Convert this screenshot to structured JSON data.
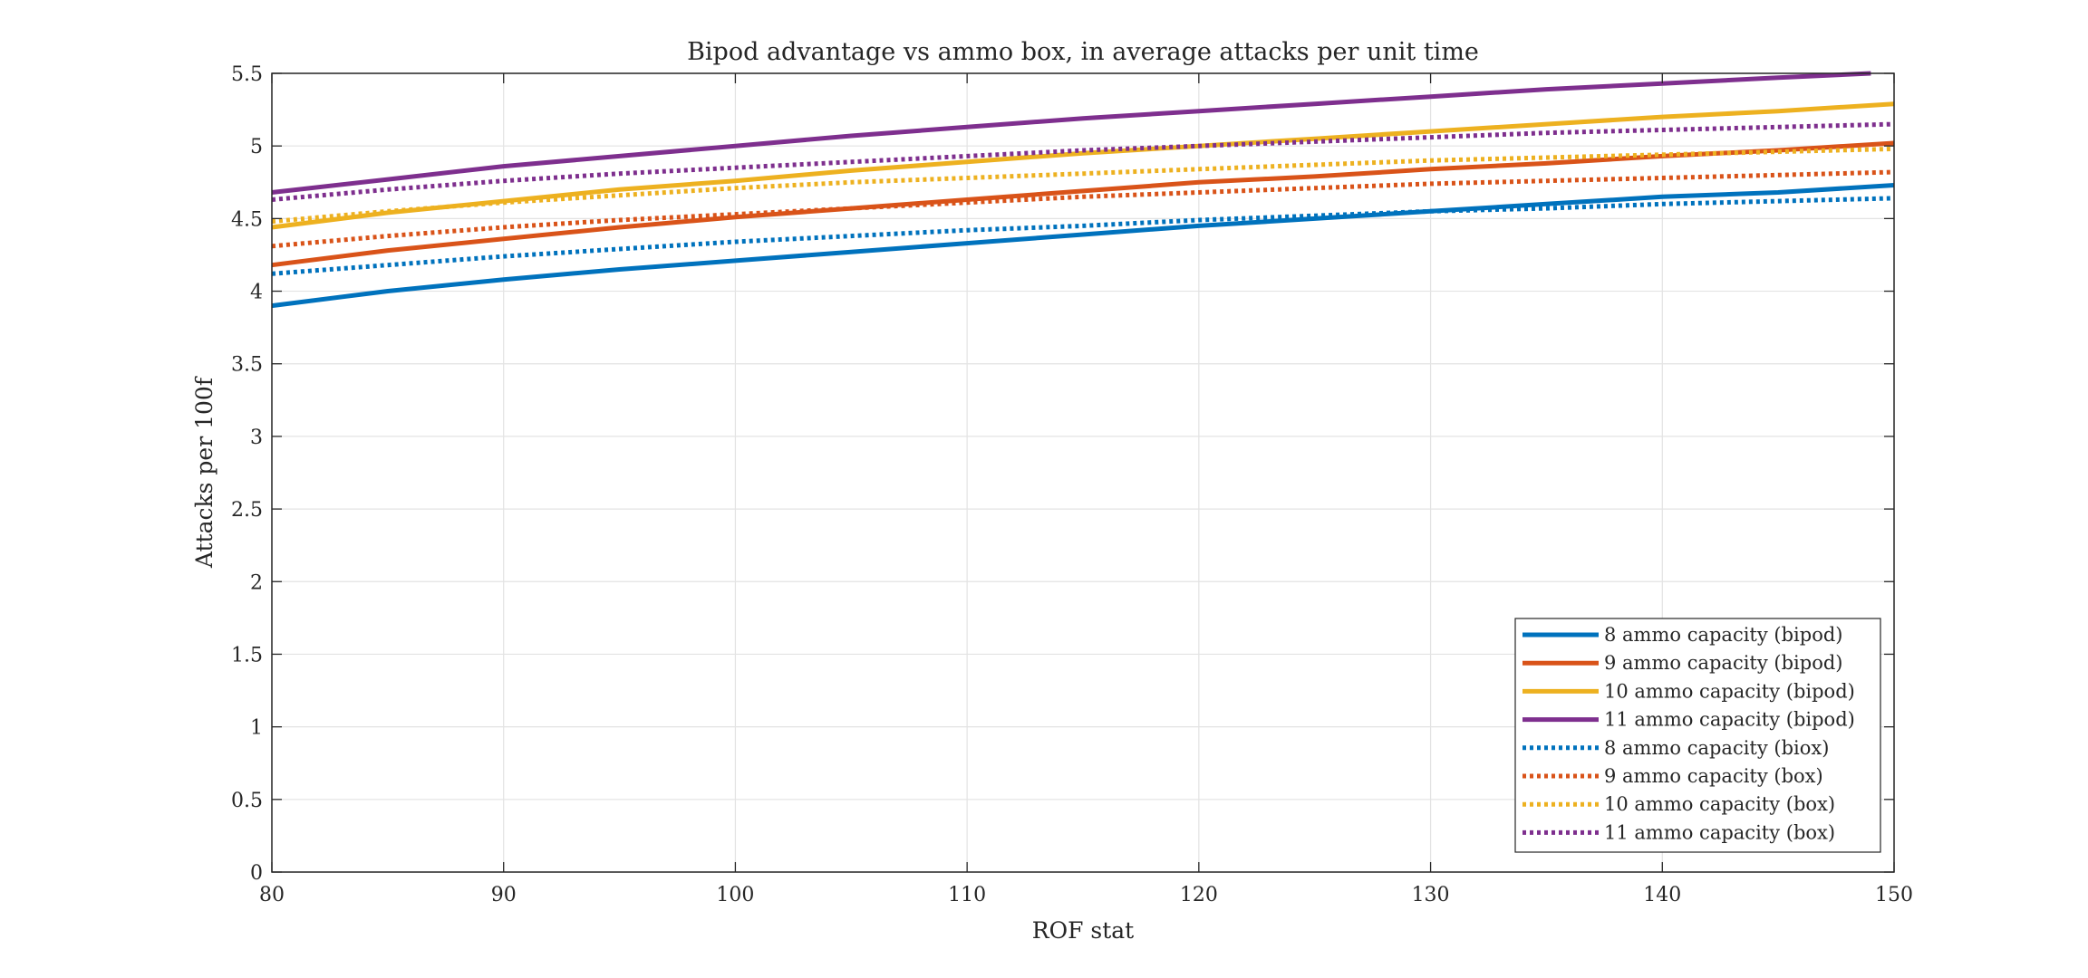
{
  "chart_data": {
    "type": "line",
    "title": "Bipod advantage vs ammo box, in average attacks per unit time",
    "xlabel": "ROF stat",
    "ylabel": "Attacks per 100f",
    "xlim": [
      80,
      150
    ],
    "ylim": [
      0,
      5.5
    ],
    "xticks": [
      80,
      90,
      100,
      110,
      120,
      130,
      140,
      150
    ],
    "xtick_labels": [
      "80",
      "90",
      "100",
      "110",
      "120",
      "130",
      "140",
      "150"
    ],
    "yticks": [
      0,
      0.5,
      1,
      1.5,
      2,
      2.5,
      3,
      3.5,
      4,
      4.5,
      5,
      5.5
    ],
    "ytick_labels": [
      "0",
      "0.5",
      "1",
      "1.5",
      "2",
      "2.5",
      "3",
      "3.5",
      "4",
      "4.5",
      "5",
      "5.5"
    ],
    "grid": true,
    "legend_position": "bottom-right",
    "series": [
      {
        "name": "8 ammo capacity (bipod)",
        "color": "#0072BD",
        "style": "solid",
        "x": [
          80,
          85,
          90,
          95,
          100,
          105,
          110,
          115,
          120,
          125,
          130,
          135,
          140,
          145,
          150
        ],
        "y": [
          3.9,
          4.0,
          4.08,
          4.15,
          4.21,
          4.27,
          4.33,
          4.39,
          4.45,
          4.5,
          4.55,
          4.6,
          4.65,
          4.68,
          4.73
        ]
      },
      {
        "name": "9 ammo capacity (bipod)",
        "color": "#D95319",
        "style": "solid",
        "x": [
          80,
          85,
          90,
          95,
          100,
          105,
          110,
          115,
          120,
          125,
          130,
          135,
          140,
          145,
          150
        ],
        "y": [
          4.18,
          4.28,
          4.36,
          4.44,
          4.51,
          4.57,
          4.63,
          4.69,
          4.75,
          4.79,
          4.84,
          4.88,
          4.93,
          4.97,
          5.02
        ]
      },
      {
        "name": "10 ammo capacity (bipod)",
        "color": "#EDB120",
        "style": "solid",
        "x": [
          80,
          85,
          90,
          95,
          100,
          105,
          110,
          115,
          120,
          125,
          130,
          135,
          140,
          145,
          150
        ],
        "y": [
          4.44,
          4.54,
          4.62,
          4.7,
          4.76,
          4.83,
          4.89,
          4.95,
          5.0,
          5.05,
          5.1,
          5.15,
          5.2,
          5.24,
          5.29
        ]
      },
      {
        "name": "11 ammo capacity (bipod)",
        "color": "#7E2F8E",
        "style": "solid",
        "x": [
          80,
          85,
          90,
          95,
          100,
          105,
          110,
          115,
          120,
          125,
          130,
          135,
          140,
          145,
          149
        ],
        "y": [
          4.68,
          4.77,
          4.86,
          4.93,
          5.0,
          5.07,
          5.13,
          5.19,
          5.24,
          5.29,
          5.34,
          5.39,
          5.43,
          5.47,
          5.5
        ]
      },
      {
        "name": "8 ammo capacity (biox)",
        "color": "#0072BD",
        "style": "dotted",
        "x": [
          80,
          85,
          90,
          95,
          100,
          105,
          110,
          115,
          120,
          125,
          130,
          135,
          140,
          145,
          150
        ],
        "y": [
          4.12,
          4.18,
          4.24,
          4.29,
          4.34,
          4.38,
          4.42,
          4.45,
          4.49,
          4.52,
          4.55,
          4.57,
          4.6,
          4.62,
          4.64
        ]
      },
      {
        "name": "9 ammo capacity (box)",
        "color": "#D95319",
        "style": "dotted",
        "x": [
          80,
          85,
          90,
          95,
          100,
          105,
          110,
          115,
          120,
          125,
          130,
          135,
          140,
          145,
          150
        ],
        "y": [
          4.31,
          4.38,
          4.44,
          4.49,
          4.53,
          4.57,
          4.61,
          4.65,
          4.68,
          4.71,
          4.74,
          4.76,
          4.78,
          4.8,
          4.82
        ]
      },
      {
        "name": "10 ammo capacity (box)",
        "color": "#EDB120",
        "style": "dotted",
        "x": [
          80,
          85,
          90,
          95,
          100,
          105,
          110,
          115,
          120,
          125,
          130,
          135,
          140,
          145,
          150
        ],
        "y": [
          4.48,
          4.55,
          4.61,
          4.66,
          4.71,
          4.75,
          4.78,
          4.81,
          4.84,
          4.87,
          4.9,
          4.92,
          4.94,
          4.96,
          4.98
        ]
      },
      {
        "name": "11 ammo capacity (box)",
        "color": "#7E2F8E",
        "style": "dotted",
        "x": [
          80,
          85,
          90,
          95,
          100,
          105,
          110,
          115,
          120,
          125,
          130,
          135,
          140,
          145,
          150
        ],
        "y": [
          4.63,
          4.7,
          4.76,
          4.81,
          4.85,
          4.89,
          4.93,
          4.97,
          5.0,
          5.03,
          5.06,
          5.09,
          5.11,
          5.13,
          5.15
        ]
      }
    ]
  }
}
